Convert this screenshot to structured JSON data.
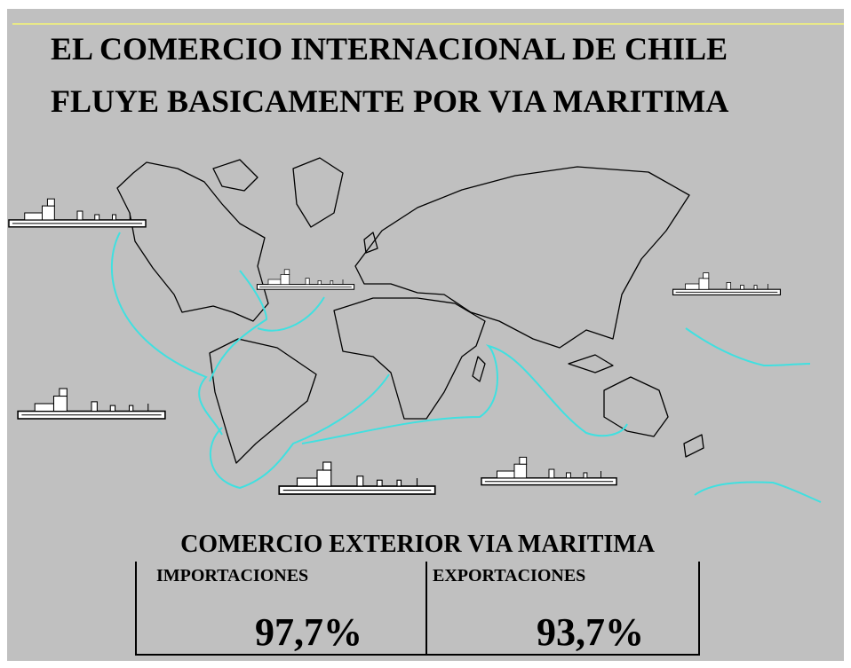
{
  "header": {
    "title_lines": [
      "EL COMERCIO  INTERNACIONAL  DE CHILE",
      "FLUYE  BASICAMENTE  POR  VIA  MARITIMA"
    ]
  },
  "table": {
    "title": "COMERCIO EXTERIOR VIA MARITIMA",
    "columns": [
      {
        "label": "IMPORTACIONES",
        "value": "97,7%"
      },
      {
        "label": "EXPORTACIONES",
        "value": "93,7%"
      }
    ]
  }
}
